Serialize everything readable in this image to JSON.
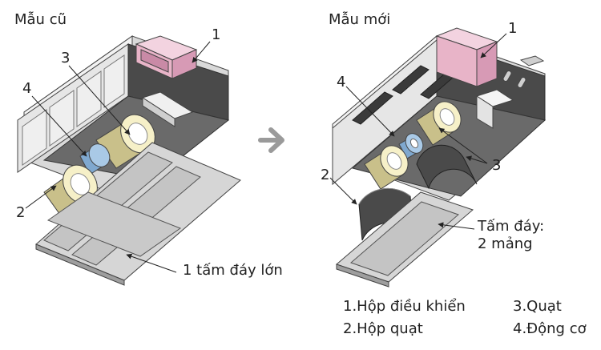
{
  "old_design": {
    "title": "Mẫu cũ",
    "callouts": [
      "1",
      "2",
      "3",
      "4"
    ],
    "bottom_plate_label": "1 tấm đáy lớn"
  },
  "new_design": {
    "title": "Mẫu mới",
    "callouts": [
      "1",
      "2",
      "3",
      "4"
    ],
    "bottom_plate_label_line1": "Tấm đáy:",
    "bottom_plate_label_line2": "2 mảng"
  },
  "legend": {
    "item1": "1.Hộp điều khiển",
    "item2": "2.Hộp quạt",
    "item3": "3.Quạt",
    "item4": "4.Động cơ"
  },
  "colors": {
    "housing_light": "#e8e8e8",
    "housing_mid": "#bdbdbd",
    "housing_dark": "#5a5a5a",
    "control_box": "#e8b4c8",
    "fan_yellow": "#c9c08a",
    "motor_blue": "#8fb3d6",
    "plate_grey": "#d0d0d0",
    "arrow_grey": "#9a9a9a"
  }
}
